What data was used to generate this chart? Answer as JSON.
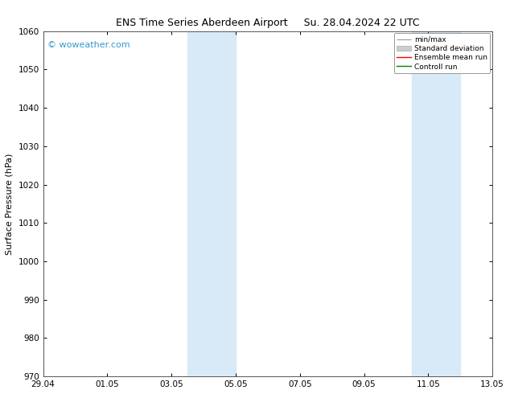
{
  "title_left": "ENS Time Series Aberdeen Airport",
  "title_right": "Su. 28.04.2024 22 UTC",
  "ylabel": "Surface Pressure (hPa)",
  "ylim": [
    970,
    1060
  ],
  "yticks": [
    970,
    980,
    990,
    1000,
    1010,
    1020,
    1030,
    1040,
    1050,
    1060
  ],
  "xlim_start": 0,
  "xlim_end": 14,
  "xtick_positions": [
    0,
    2,
    4,
    6,
    8,
    10,
    12,
    14
  ],
  "xtick_labels": [
    "29.04",
    "01.05",
    "03.05",
    "05.05",
    "07.05",
    "09.05",
    "11.05",
    "13.05"
  ],
  "shade_bands": [
    {
      "x_start": 4.5,
      "x_end": 6.0
    },
    {
      "x_start": 11.5,
      "x_end": 13.0
    }
  ],
  "shade_color": "#d8eaf8",
  "shade_alpha": 1.0,
  "watermark_text": "© woweather.com",
  "watermark_color": "#3399cc",
  "background_color": "#ffffff",
  "plot_bg_color": "#ffffff",
  "grid_color": "#cccccc",
  "title_fontsize": 9,
  "axis_label_fontsize": 8,
  "tick_fontsize": 7.5
}
